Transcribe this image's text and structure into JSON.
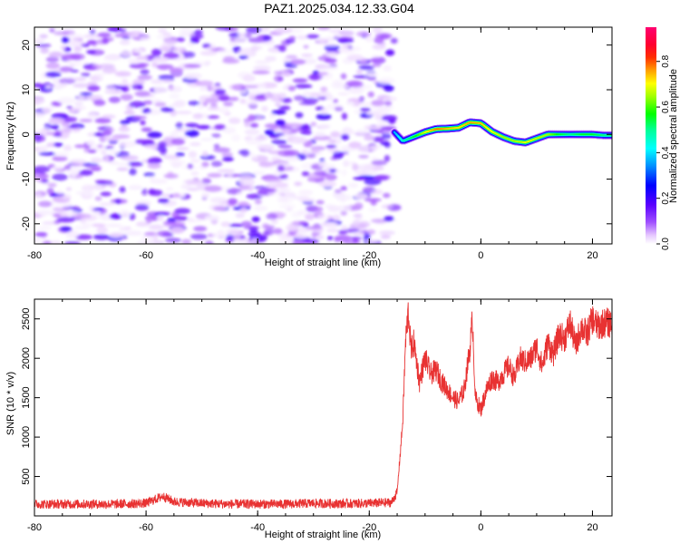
{
  "title": "PAZ1.2025.034.12.33.G04",
  "colors": {
    "snr_line": "#e83232",
    "noise_purple": "#8a2be2",
    "frame": "#000000"
  },
  "colorbar": {
    "label": "Normalized spectral amplitude",
    "ticks": [
      "0.0",
      "0.2",
      "0.4",
      "0.6",
      "0.8"
    ],
    "tick_values": [
      0.0,
      0.2,
      0.4,
      0.6,
      0.8
    ],
    "range": [
      0,
      0.95
    ],
    "colormap": "hsv-rainbow (white at 0, purple, blue, cyan, green, yellow, orange, red, magenta)"
  },
  "chart_data": [
    {
      "type": "heatmap",
      "title": "PAZ1.2025.034.12.33.G04",
      "xlabel": "Height of straight line (km)",
      "ylabel": "Frequency (Hz)",
      "xlim": [
        -80,
        23.5
      ],
      "ylim": [
        -24.5,
        24
      ],
      "xticks": [
        -80,
        -60,
        -40,
        -20,
        0,
        20
      ],
      "yticks": [
        -20,
        -10,
        0,
        10,
        20
      ],
      "xtick_labels": [
        "-80",
        "-60",
        "-40",
        "-20",
        "0",
        "20"
      ],
      "ytick_labels": [
        "-20",
        "-10",
        "0",
        "10",
        "20"
      ],
      "signal_onset_km": -15.5,
      "noise_region_x": [
        -80,
        -15.5
      ],
      "signal_ridge": {
        "x": [
          -15.5,
          -14,
          -12,
          -10,
          -8,
          -6,
          -4,
          -2,
          0,
          2,
          4,
          6,
          8,
          10,
          12,
          14,
          16,
          18,
          20,
          22,
          23.5
        ],
        "frequency_hz": [
          0.5,
          -1.5,
          -0.5,
          0.5,
          1.2,
          1.3,
          1.5,
          2.7,
          2.5,
          0.6,
          -0.6,
          -1.5,
          -1.8,
          -0.9,
          0.0,
          0.0,
          0.0,
          0.0,
          0.0,
          -0.2,
          -0.2
        ],
        "peak_amplitude": [
          0.4,
          0.5,
          0.6,
          0.75,
          0.85,
          0.8,
          0.78,
          0.82,
          0.8,
          0.75,
          0.7,
          0.7,
          0.75,
          0.72,
          0.7,
          0.6,
          0.55,
          0.6,
          0.6,
          0.55,
          0.55
        ]
      }
    },
    {
      "type": "line",
      "xlabel": "Height of straight line (km)",
      "ylabel": "SNR (10 * v/v)",
      "xlim": [
        -80,
        23.5
      ],
      "ylim": [
        0,
        2750
      ],
      "xticks": [
        -80,
        -60,
        -40,
        -20,
        0,
        20
      ],
      "yticks": [
        500,
        1000,
        1500,
        2000,
        2500
      ],
      "xtick_labels": [
        "-80",
        "-60",
        "-40",
        "-20",
        "0",
        "20"
      ],
      "ytick_labels": [
        "500",
        "1000",
        "1500",
        "2000",
        "2500"
      ],
      "series": [
        {
          "color": "#e83232",
          "x": [
            -80,
            -75,
            -70,
            -65,
            -60,
            -57,
            -55,
            -50,
            -45,
            -40,
            -35,
            -30,
            -25,
            -20,
            -16,
            -15,
            -14,
            -13.5,
            -13,
            -12.5,
            -12,
            -11,
            -10,
            -9,
            -8,
            -7,
            -6,
            -5,
            -4,
            -3,
            -2,
            -1.5,
            -1,
            0,
            1,
            2,
            3,
            4,
            5,
            6,
            7,
            8,
            9,
            10,
            11,
            12,
            13,
            14,
            15,
            16,
            17,
            18,
            19,
            20,
            21,
            22,
            23.5
          ],
          "values": [
            150,
            150,
            150,
            150,
            160,
            250,
            180,
            160,
            150,
            150,
            150,
            160,
            155,
            160,
            170,
            300,
            1200,
            2200,
            2600,
            2100,
            2200,
            1700,
            2000,
            1800,
            1850,
            1700,
            1600,
            1500,
            1450,
            1600,
            2100,
            2500,
            1500,
            1350,
            1600,
            1750,
            1700,
            1800,
            1900,
            1750,
            2000,
            1950,
            2000,
            2150,
            1900,
            2200,
            2050,
            2300,
            2250,
            2450,
            2150,
            2400,
            2300,
            2500,
            2400,
            2450,
            2450
          ],
          "noise_band": 60
        }
      ]
    }
  ]
}
